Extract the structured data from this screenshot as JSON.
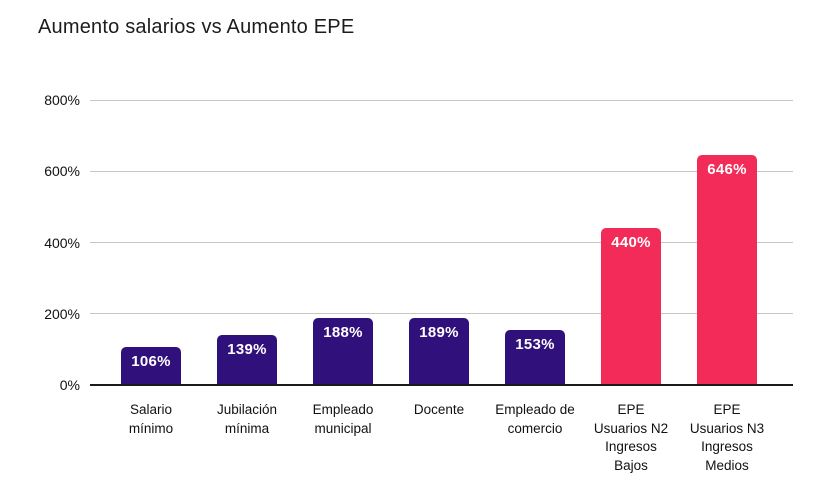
{
  "chart_data": {
    "type": "bar",
    "title": "Aumento salarios vs Aumento EPE",
    "categories": [
      "Salario mínimo",
      "Jubilación mínima",
      "Empleado municipal",
      "Docente",
      "Empleado de comercio",
      "EPE Usuarios N2 Ingresos Bajos",
      "EPE Usuarios N3 Ingresos Medios"
    ],
    "categories_lines": [
      [
        "Salario",
        "mínimo"
      ],
      [
        "Jubilación",
        "mínima"
      ],
      [
        "Empleado",
        "municipal"
      ],
      [
        "Docente"
      ],
      [
        "Empleado de",
        "comercio"
      ],
      [
        "EPE",
        "Usuarios N2",
        "Ingresos",
        "Bajos"
      ],
      [
        "EPE",
        "Usuarios N3",
        "Ingresos",
        "Medios"
      ]
    ],
    "values": [
      106,
      139,
      188,
      189,
      153,
      440,
      646
    ],
    "value_labels": [
      "106%",
      "139%",
      "188%",
      "189%",
      "153%",
      "440%",
      "646%"
    ],
    "bar_colors": [
      "#30107A",
      "#30107A",
      "#30107A",
      "#30107A",
      "#30107A",
      "#F22B59",
      "#F22B59"
    ],
    "ytick_values": [
      0,
      200,
      400,
      600,
      800
    ],
    "ytick_labels": [
      "0%",
      "200%",
      "400%",
      "600%",
      "800%"
    ],
    "ylim": [
      0,
      800
    ],
    "xlabel": "",
    "ylabel": "",
    "grid": "horizontal",
    "legend": "none",
    "colors": {
      "salario_series": "#30107A",
      "epe_series": "#F22B59",
      "gridline": "#C6C6C6",
      "axis_line": "#1A1A1A",
      "text": "#111111",
      "value_label_text": "#FFFFFF",
      "background": "#FFFFFF"
    }
  }
}
